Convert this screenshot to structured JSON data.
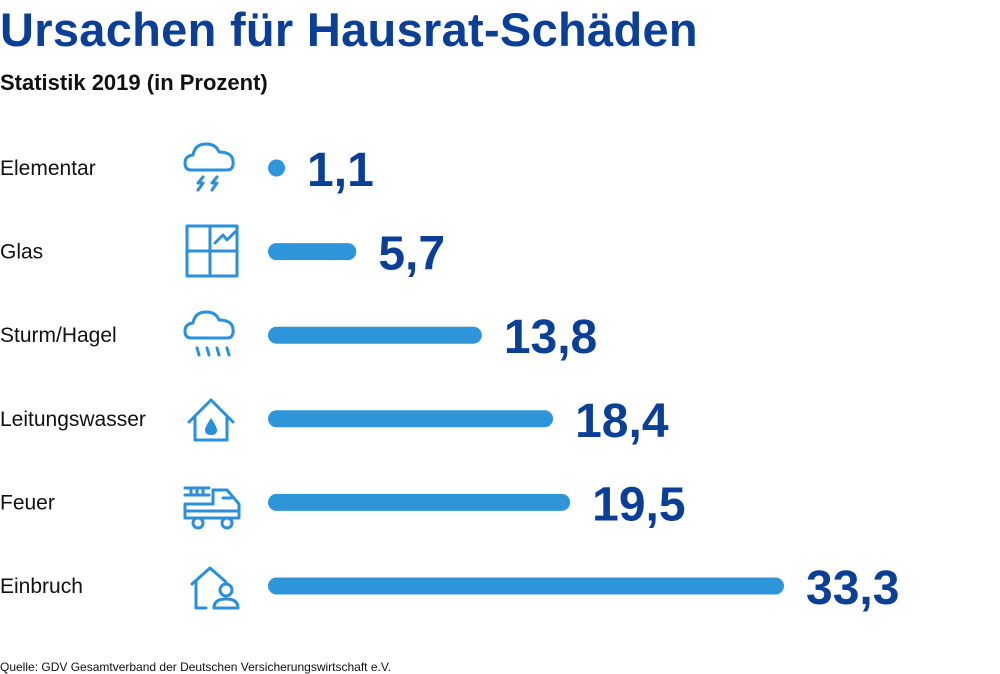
{
  "title": "Ursachen für Hausrat-Schäden",
  "subtitle": "Statistik 2019 (in Prozent)",
  "source": "Quelle: GDV Gesamtverband der Deutschen Versicherungswirtschaft e.V.",
  "colors": {
    "bar": "#2f95db",
    "value_text": "#0a3f95",
    "icon": "#2b8fd9",
    "title": "#0a3f95"
  },
  "chart_data": {
    "type": "bar",
    "orientation": "horizontal",
    "categories": [
      "Elementar",
      "Glas",
      "Sturm/Hagel",
      "Leitungswasser",
      "Feuer",
      "Einbruch"
    ],
    "values": [
      1.1,
      5.7,
      13.8,
      18.4,
      19.5,
      33.3
    ],
    "value_labels": [
      "1,1",
      "5,7",
      "13,8",
      "18,4",
      "19,5",
      "33,3"
    ],
    "icons": [
      "cloud-lightning-icon",
      "window-icon",
      "cloud-rain-icon",
      "house-water-drop-icon",
      "fire-truck-icon",
      "house-person-icon"
    ],
    "title": "Ursachen für Hausrat-Schäden",
    "subtitle": "Statistik 2019 (in Prozent)",
    "xlim": [
      0,
      33.3
    ],
    "grid": false,
    "legend": "none"
  }
}
